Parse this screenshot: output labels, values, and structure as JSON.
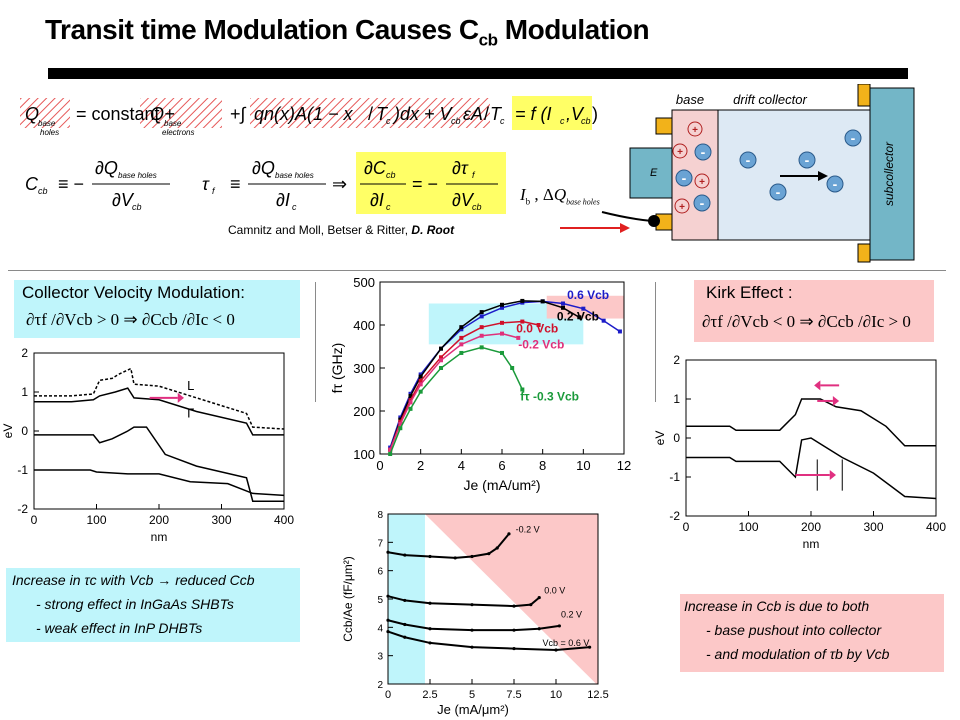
{
  "title": {
    "main": "Transit time Modulation Causes  C",
    "sub": "cb",
    "tail": " Modulation"
  },
  "equations": {
    "qbase_lhs": "Q",
    "qbase_lhs_sub": "base holes",
    "constant": "= constant +",
    "qbase_e": "Q",
    "qbase_e_sub": "base electrons",
    "integral_body": "+∫₀^Tc qn(x)A(1 − x/Tc)dx + Vcb·εA/Tc",
    "f_label": "= f(Ic, Vcb)",
    "ccb_def": "Ccb ≡ −∂Q base holes / ∂Vcb",
    "tauf_def": "τf ≡ ∂Q base holes / ∂Ic",
    "ccb_ratio": "∂Ccb/∂Ic = −∂τf/∂Vcb",
    "implies": "⇒",
    "ib_label": "Ib , ΔQ base holes"
  },
  "citation": {
    "plain": "Camnitz and Moll, Betser & Ritter,",
    "bold": " D. Root"
  },
  "device": {
    "base_label": "base",
    "drift_label": "drift collector",
    "emitter_label": "E",
    "subcollector_label": "subcollector"
  },
  "left_panel": {
    "heading": "Collector Velocity Modulation:",
    "formula": "∂τf /∂Vcb > 0 ⇒ ∂Ccb /∂Ic < 0",
    "notes": [
      "Increase in τc  with Vcb → reduced  Ccb",
      "- strong effect  in InGaAs SHBTs",
      "- weak effect  in InP DHBTs"
    ],
    "plot": {
      "ylabel": "eV",
      "xlabel": "nm",
      "L_label": "L",
      "G_label": "Γ",
      "xticks": [
        "0",
        "100",
        "200",
        "300",
        "400"
      ],
      "yticks": [
        "2",
        "1",
        "0",
        "-1",
        "-2"
      ]
    }
  },
  "right_panel": {
    "heading": "Kirk Effect :",
    "formula": "∂τf /∂Vcb < 0 ⇒ ∂Ccb /∂Ic > 0",
    "notes": [
      "Increase in Ccb  is due to both",
      "- base pushout into collector",
      "- and  modulation  of  τb by Vcb"
    ],
    "plot": {
      "ylabel": "eV",
      "xlabel": "nm",
      "xticks": [
        "0",
        "100",
        "200",
        "300",
        "400"
      ],
      "yticks": [
        "2",
        "1",
        "0",
        "-1",
        "-2"
      ]
    }
  },
  "chart_data": [
    {
      "type": "line",
      "xlabel": "Je (mA/um²)",
      "ylabel": "fτ (GHz)",
      "xlim": [
        0,
        12
      ],
      "ylim": [
        100,
        500
      ],
      "xticks": [
        "0",
        "2",
        "4",
        "6",
        "8",
        "10",
        "12"
      ],
      "yticks": [
        "100",
        "200",
        "300",
        "400",
        "500"
      ],
      "series": [
        {
          "name": "0.6 Vcb",
          "color": "#1c1cc8",
          "x": [
            0.5,
            1,
            1.5,
            2,
            3,
            4,
            5,
            6,
            7,
            8,
            9,
            10,
            11,
            11.8
          ],
          "y": [
            115,
            185,
            240,
            285,
            345,
            390,
            420,
            440,
            452,
            455,
            450,
            438,
            410,
            385
          ]
        },
        {
          "name": "0.2 Vcb",
          "color": "#000000",
          "x": [
            0.5,
            1,
            1.5,
            2,
            3,
            4,
            5,
            6,
            7,
            8,
            9,
            9.8
          ],
          "y": [
            110,
            180,
            235,
            280,
            345,
            395,
            430,
            447,
            456,
            455,
            440,
            418
          ]
        },
        {
          "name": "0.0 Vcb",
          "color": "#d0102a",
          "x": [
            0.5,
            1,
            1.5,
            2,
            3,
            4,
            5,
            6,
            7,
            7.8
          ],
          "y": [
            110,
            175,
            225,
            270,
            325,
            370,
            395,
            405,
            408,
            400
          ]
        },
        {
          "name": "-0.2 Vcb",
          "color": "#e0307a",
          "x": [
            0.5,
            1,
            1.5,
            2,
            3,
            4,
            5,
            6,
            6.8
          ],
          "y": [
            110,
            170,
            220,
            262,
            318,
            355,
            375,
            380,
            370
          ]
        },
        {
          "name": "fτ -0.3 Vcb",
          "color": "#1a9a3a",
          "x": [
            0.5,
            1,
            1.5,
            2,
            3,
            4,
            5,
            6,
            6.5,
            7
          ],
          "y": [
            100,
            160,
            205,
            245,
            300,
            335,
            348,
            335,
            300,
            250
          ]
        }
      ]
    },
    {
      "type": "line",
      "xlabel": "Je (mA/μm²)",
      "ylabel": "Ccb/Ae (fF/μm²)",
      "xlim": [
        0,
        12.5
      ],
      "ylim": [
        2,
        8
      ],
      "xticks": [
        "0",
        "2.5",
        "5",
        "7.5",
        "10",
        "12.5"
      ],
      "yticks": [
        "2",
        "3",
        "4",
        "5",
        "6",
        "7",
        "8"
      ],
      "series": [
        {
          "name": "-0.2 V",
          "x": [
            0,
            1,
            2.5,
            4,
            5,
            6,
            6.5,
            7.2
          ],
          "y": [
            6.65,
            6.55,
            6.5,
            6.45,
            6.5,
            6.6,
            6.8,
            7.3
          ]
        },
        {
          "name": "0.0 V",
          "x": [
            0,
            1,
            2.5,
            5,
            7.5,
            8.5,
            9
          ],
          "y": [
            5.1,
            4.95,
            4.85,
            4.8,
            4.75,
            4.8,
            5.05
          ]
        },
        {
          "name": "0.2 V",
          "x": [
            0,
            1,
            2.5,
            5,
            7.5,
            9,
            10.2
          ],
          "y": [
            4.25,
            4.1,
            3.95,
            3.9,
            3.9,
            3.95,
            4.05
          ]
        },
        {
          "name": "Vcb = 0.6 V",
          "x": [
            0,
            1,
            2.5,
            5,
            7.5,
            10,
            12
          ],
          "y": [
            3.85,
            3.65,
            3.45,
            3.3,
            3.25,
            3.2,
            3.3
          ]
        }
      ]
    }
  ]
}
